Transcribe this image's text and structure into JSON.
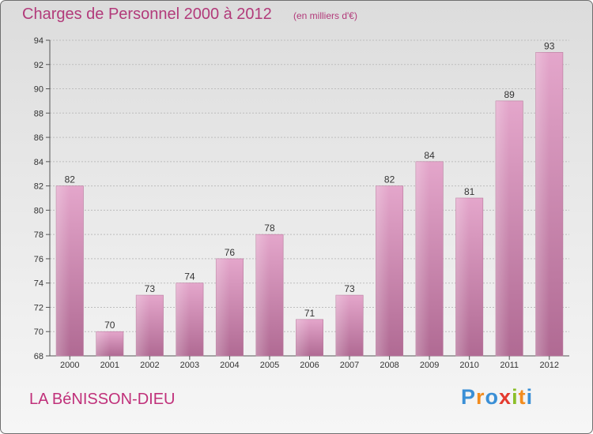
{
  "chart_data": {
    "type": "bar",
    "title": "Charges de Personnel 2000 à 2012",
    "subtitle": "(en milliers d'€)",
    "categories": [
      "2000",
      "2001",
      "2002",
      "2003",
      "2004",
      "2005",
      "2006",
      "2007",
      "2008",
      "2009",
      "2010",
      "2011",
      "2012"
    ],
    "values": [
      82,
      70,
      73,
      74,
      76,
      78,
      71,
      73,
      82,
      84,
      81,
      89,
      93
    ],
    "ylim": [
      68,
      94
    ],
    "yticks": [
      68,
      70,
      72,
      74,
      76,
      78,
      80,
      82,
      84,
      86,
      88,
      90,
      92,
      94
    ],
    "grid": true,
    "bar_color": "#c8669e"
  },
  "footer": {
    "commune": "LA BéNISSON-DIEU",
    "brand": [
      "P",
      "r",
      "o",
      "x",
      "i",
      "t",
      "i"
    ],
    "brand_colors": [
      "#3a8fd6",
      "#f28c1e",
      "#3a8fd6",
      "#e43a2f",
      "#8bbf2a",
      "#f28c1e",
      "#3a8fd6"
    ]
  }
}
